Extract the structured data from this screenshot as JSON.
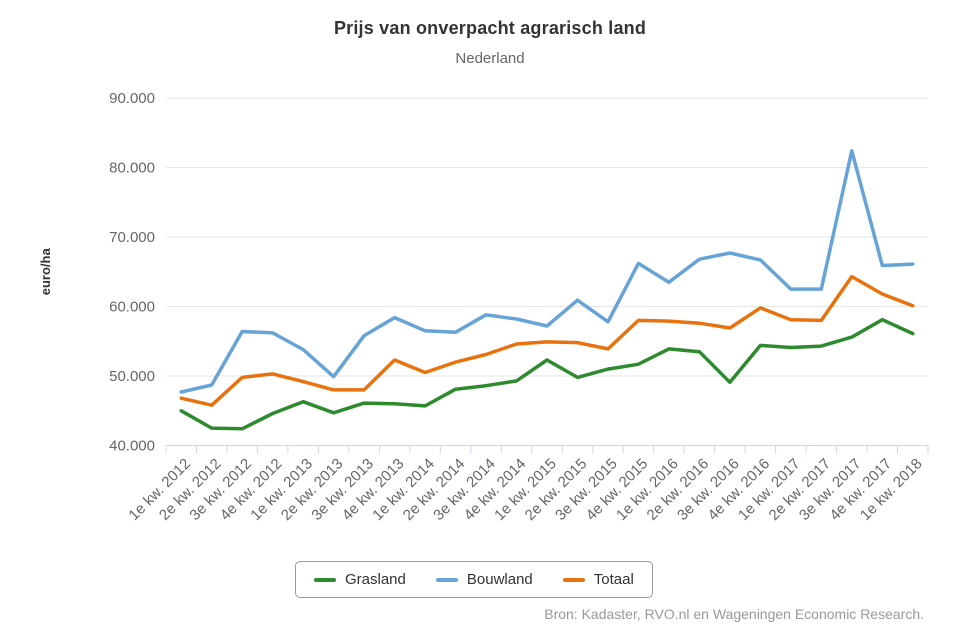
{
  "header": {
    "title": "Prijs van onverpacht agrarisch land",
    "subtitle": "Nederland"
  },
  "source_note": "Bron: Kadaster, RVO.nl en Wageningen Economic Research.",
  "y_axis": {
    "label": "euro/ha",
    "tick_labels": [
      "40.000",
      "50.000",
      "60.000",
      "70.000",
      "80.000",
      "90.000"
    ]
  },
  "colors": {
    "grid_line": "#e6e6e6",
    "axis_line": "#ccd6eb",
    "axis_text": "#666666",
    "title_text": "#333333",
    "subtitle_text": "#666666",
    "source_text": "#999999"
  },
  "chart_data": {
    "type": "line",
    "title": "Prijs van onverpacht agrarisch land",
    "subtitle": "Nederland",
    "ylabel": "euro/ha",
    "ylim": [
      40000,
      90000
    ],
    "y_tick_step": 10000,
    "grid": true,
    "legend_position": "bottom",
    "categories": [
      "1e kw. 2012",
      "2e kw. 2012",
      "3e kw. 2012",
      "4e kw. 2012",
      "1e kw. 2013",
      "2e kw. 2013",
      "3e kw. 2013",
      "4e kw. 2013",
      "1e kw. 2014",
      "2e kw. 2014",
      "3e kw. 2014",
      "4e kw. 2014",
      "1e kw. 2015",
      "2e kw. 2015",
      "3e kw. 2015",
      "4e kw. 2015",
      "1e kw. 2016",
      "2e kw. 2016",
      "3e kw. 2016",
      "4e kw. 2016",
      "1e kw. 2017",
      "2e kw. 2017",
      "3e kw. 2017",
      "4e kw. 2017",
      "1e kw. 2018"
    ],
    "series": [
      {
        "name": "Grasland",
        "color": "#2d8a2d",
        "values": [
          45000,
          42500,
          42400,
          44600,
          46300,
          44700,
          46100,
          46000,
          45700,
          48100,
          48600,
          49300,
          52300,
          49800,
          51000,
          51700,
          53900,
          53500,
          49100,
          54400,
          54100,
          54300,
          55600,
          58100,
          56100
        ]
      },
      {
        "name": "Bouwland",
        "color": "#66a3d6",
        "values": [
          47700,
          48700,
          56400,
          56200,
          53800,
          49900,
          55800,
          58400,
          56500,
          56300,
          58800,
          58200,
          57200,
          60900,
          57800,
          66200,
          63500,
          66800,
          67700,
          66700,
          62500,
          62500,
          82400,
          65900,
          66100
        ]
      },
      {
        "name": "Totaal",
        "color": "#e8730e",
        "values": [
          46800,
          45800,
          49800,
          50300,
          49200,
          48000,
          48000,
          52300,
          50500,
          52000,
          53100,
          54600,
          54900,
          54800,
          53900,
          58000,
          57900,
          57600,
          56900,
          59800,
          58100,
          58000,
          64300,
          61800,
          60100
        ]
      }
    ]
  }
}
